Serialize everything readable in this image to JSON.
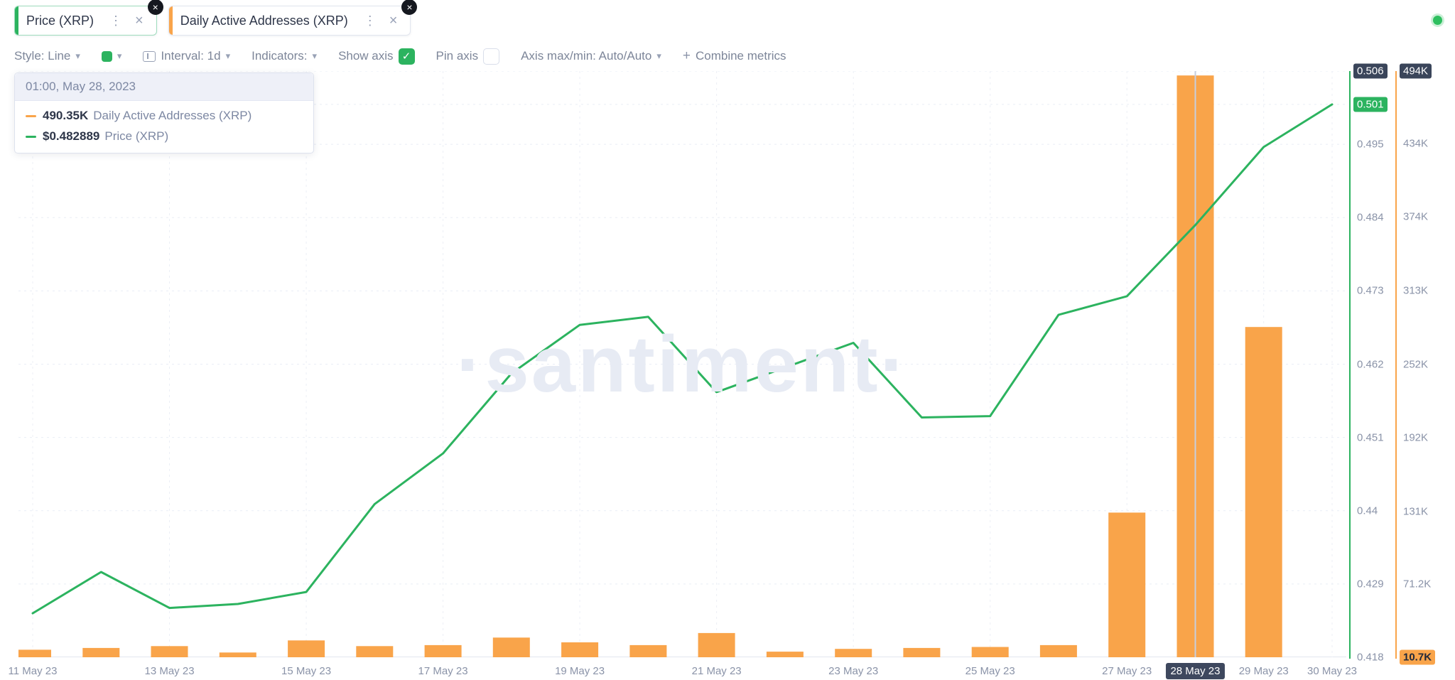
{
  "icons": {
    "kebab": "⋮",
    "close": "×",
    "remove": "×",
    "chevron": "▾",
    "check": "✓",
    "plus": "+"
  },
  "metric_tabs": [
    {
      "label": "Price (XRP)",
      "accent_color": "#2cb35f"
    },
    {
      "label": "Daily Active Addresses (XRP)",
      "accent_color": "#f9a44a"
    }
  ],
  "toolbar": {
    "style_label": "Style: Line",
    "swatch_color": "#2cb35f",
    "interval_label": "Interval: 1d",
    "indicators_label": "Indicators:",
    "show_axis_label": "Show axis",
    "show_axis_checked": true,
    "pin_axis_label": "Pin axis",
    "pin_axis_checked": false,
    "axis_maxmin_label": "Axis max/min: Auto/Auto",
    "combine_metrics_label": "Combine metrics"
  },
  "status_dot_color": "#2ebf5f",
  "tooltip": {
    "timestamp": "01:00, May 28, 2023",
    "rows": [
      {
        "value": "490.35K",
        "label": "Daily Active Addresses (XRP)",
        "color": "#f9a44a"
      },
      {
        "value": "$0.482889",
        "label": "Price (XRP)",
        "color": "#2cb35f"
      }
    ]
  },
  "watermark": "·santiment·",
  "chart_data": {
    "type": "line+bar",
    "title": "",
    "x": [
      "11 May 23",
      "12 May 23",
      "13 May 23",
      "14 May 23",
      "15 May 23",
      "16 May 23",
      "17 May 23",
      "18 May 23",
      "19 May 23",
      "20 May 23",
      "21 May 23",
      "22 May 23",
      "23 May 23",
      "24 May 23",
      "25 May 23",
      "26 May 23",
      "27 May 23",
      "28 May 23",
      "29 May 23",
      "30 May 23"
    ],
    "series": [
      {
        "name": "Daily Active Addresses (XRP)",
        "type": "bar",
        "axis": "addresses",
        "color": "#f9a44a",
        "values": [
          16900,
          18400,
          19900,
          14600,
          24600,
          19900,
          20700,
          26900,
          23000,
          20700,
          30700,
          15300,
          17600,
          18400,
          19200,
          20700,
          130000,
          490350,
          283000,
          10700
        ]
      },
      {
        "name": "Price (XRP)",
        "type": "line",
        "axis": "price",
        "color": "#2cb35f",
        "values": [
          0.4246,
          0.4308,
          0.4254,
          0.426,
          0.4278,
          0.441,
          0.4486,
          0.4606,
          0.4679,
          0.4691,
          0.4578,
          0.4615,
          0.4652,
          0.454,
          0.4542,
          0.4694,
          0.4722,
          0.482889,
          0.4946,
          0.501
        ]
      }
    ],
    "axes": {
      "price": {
        "min": 0.418,
        "max": 0.506,
        "color": "#2cb35f",
        "position": "right",
        "ticks": [
          {
            "value": 0.506,
            "label": "0.506",
            "badge": "dark"
          },
          {
            "value": 0.501,
            "label": "0.501",
            "badge": "green"
          },
          {
            "value": 0.495,
            "label": "0.495"
          },
          {
            "value": 0.484,
            "label": "0.484"
          },
          {
            "value": 0.473,
            "label": "0.473"
          },
          {
            "value": 0.462,
            "label": "0.462"
          },
          {
            "value": 0.451,
            "label": "0.451"
          },
          {
            "value": 0.44,
            "label": "0.44"
          },
          {
            "value": 0.429,
            "label": "0.429"
          },
          {
            "value": 0.418,
            "label": "0.418"
          }
        ]
      },
      "addresses": {
        "min": 10700,
        "max": 494000,
        "color": "#f9a44a",
        "position": "right",
        "ticks": [
          {
            "value": 494000,
            "label": "494K",
            "badge": "dark"
          },
          {
            "value": 434000,
            "label": "434K"
          },
          {
            "value": 374000,
            "label": "374K"
          },
          {
            "value": 313000,
            "label": "313K"
          },
          {
            "value": 252000,
            "label": "252K"
          },
          {
            "value": 192000,
            "label": "192K"
          },
          {
            "value": 131000,
            "label": "131K"
          },
          {
            "value": 71200,
            "label": "71.2K"
          },
          {
            "value": 10700,
            "label": "10.7K",
            "badge": "orange"
          }
        ]
      }
    },
    "x_ticks": [
      {
        "index": 0,
        "label": "11 May 23"
      },
      {
        "index": 2,
        "label": "13 May 23"
      },
      {
        "index": 4,
        "label": "15 May 23"
      },
      {
        "index": 6,
        "label": "17 May 23"
      },
      {
        "index": 8,
        "label": "19 May 23"
      },
      {
        "index": 10,
        "label": "21 May 23"
      },
      {
        "index": 12,
        "label": "23 May 23"
      },
      {
        "index": 14,
        "label": "25 May 23"
      },
      {
        "index": 16,
        "label": "27 May 23"
      },
      {
        "index": 17,
        "label": "28 May 23",
        "badge": "dark"
      },
      {
        "index": 18,
        "label": "29 May 23"
      },
      {
        "index": 19,
        "label": "30 May 23"
      }
    ],
    "crosshair_index": 17,
    "grid": true,
    "legend_position": "tooltip-top-left"
  }
}
